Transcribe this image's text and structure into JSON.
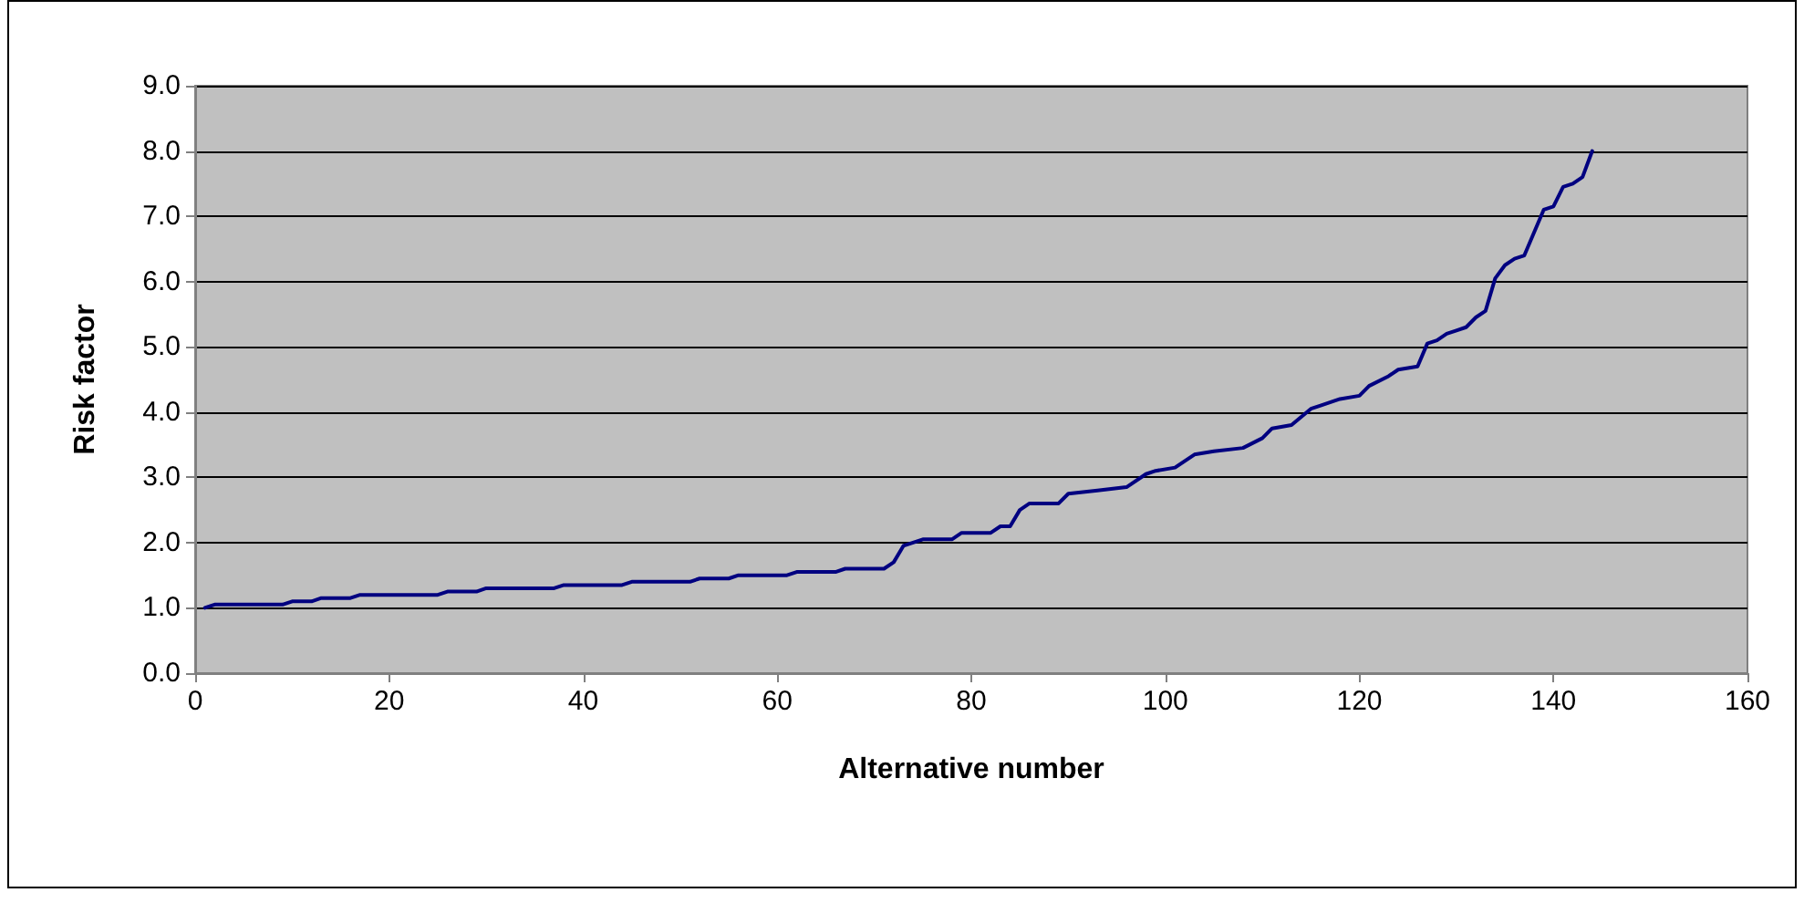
{
  "chart_data": {
    "type": "line",
    "xlabel": "Alternative number",
    "ylabel": "Risk factor",
    "series": [
      {
        "color": "#000080",
        "x": [
          1,
          2,
          9,
          10,
          12,
          13,
          16,
          17,
          25,
          26,
          29,
          30,
          37,
          38,
          44,
          45,
          51,
          52,
          55,
          56,
          61,
          62,
          66,
          67,
          71,
          72,
          73,
          74,
          75,
          78,
          79,
          82,
          83,
          84,
          85,
          86,
          89,
          90,
          93,
          96,
          98,
          99,
          101,
          103,
          105,
          108,
          110,
          111,
          113,
          115,
          116,
          118,
          120,
          121,
          123,
          124,
          126,
          127,
          128,
          129,
          130,
          131,
          132,
          133,
          134,
          135,
          136,
          137,
          138,
          139,
          140,
          141,
          142,
          143,
          144
        ],
        "values": [
          1.0,
          1.05,
          1.05,
          1.1,
          1.1,
          1.15,
          1.15,
          1.2,
          1.2,
          1.25,
          1.25,
          1.3,
          1.3,
          1.35,
          1.35,
          1.4,
          1.4,
          1.45,
          1.45,
          1.5,
          1.5,
          1.55,
          1.55,
          1.6,
          1.6,
          1.7,
          1.95,
          2.0,
          2.05,
          2.05,
          2.15,
          2.15,
          2.25,
          2.25,
          2.5,
          2.6,
          2.6,
          2.75,
          2.8,
          2.85,
          3.05,
          3.1,
          3.15,
          3.35,
          3.4,
          3.45,
          3.6,
          3.75,
          3.8,
          4.05,
          4.1,
          4.2,
          4.25,
          4.4,
          4.55,
          4.65,
          4.7,
          5.05,
          5.1,
          5.2,
          5.25,
          5.3,
          5.45,
          5.55,
          6.05,
          6.25,
          6.35,
          6.4,
          6.75,
          7.1,
          7.15,
          7.45,
          7.5,
          7.6,
          8.0
        ]
      }
    ],
    "xlim": [
      0,
      160
    ],
    "xticks": [
      0,
      20,
      40,
      60,
      80,
      100,
      120,
      140,
      160
    ],
    "ylim": [
      0,
      9
    ],
    "yticks": [
      {
        "value": 0,
        "label": "0.0"
      },
      {
        "value": 1,
        "label": "1.0"
      },
      {
        "value": 2,
        "label": "2.0"
      },
      {
        "value": 3,
        "label": "3.0"
      },
      {
        "value": 4,
        "label": "4.0"
      },
      {
        "value": 5,
        "label": "5.0"
      },
      {
        "value": 6,
        "label": "6.0"
      },
      {
        "value": 7,
        "label": "7.0"
      },
      {
        "value": 8,
        "label": "8.0"
      },
      {
        "value": 9,
        "label": "9.0"
      }
    ],
    "grid": "y",
    "marker": "none",
    "line_style": "solid"
  }
}
